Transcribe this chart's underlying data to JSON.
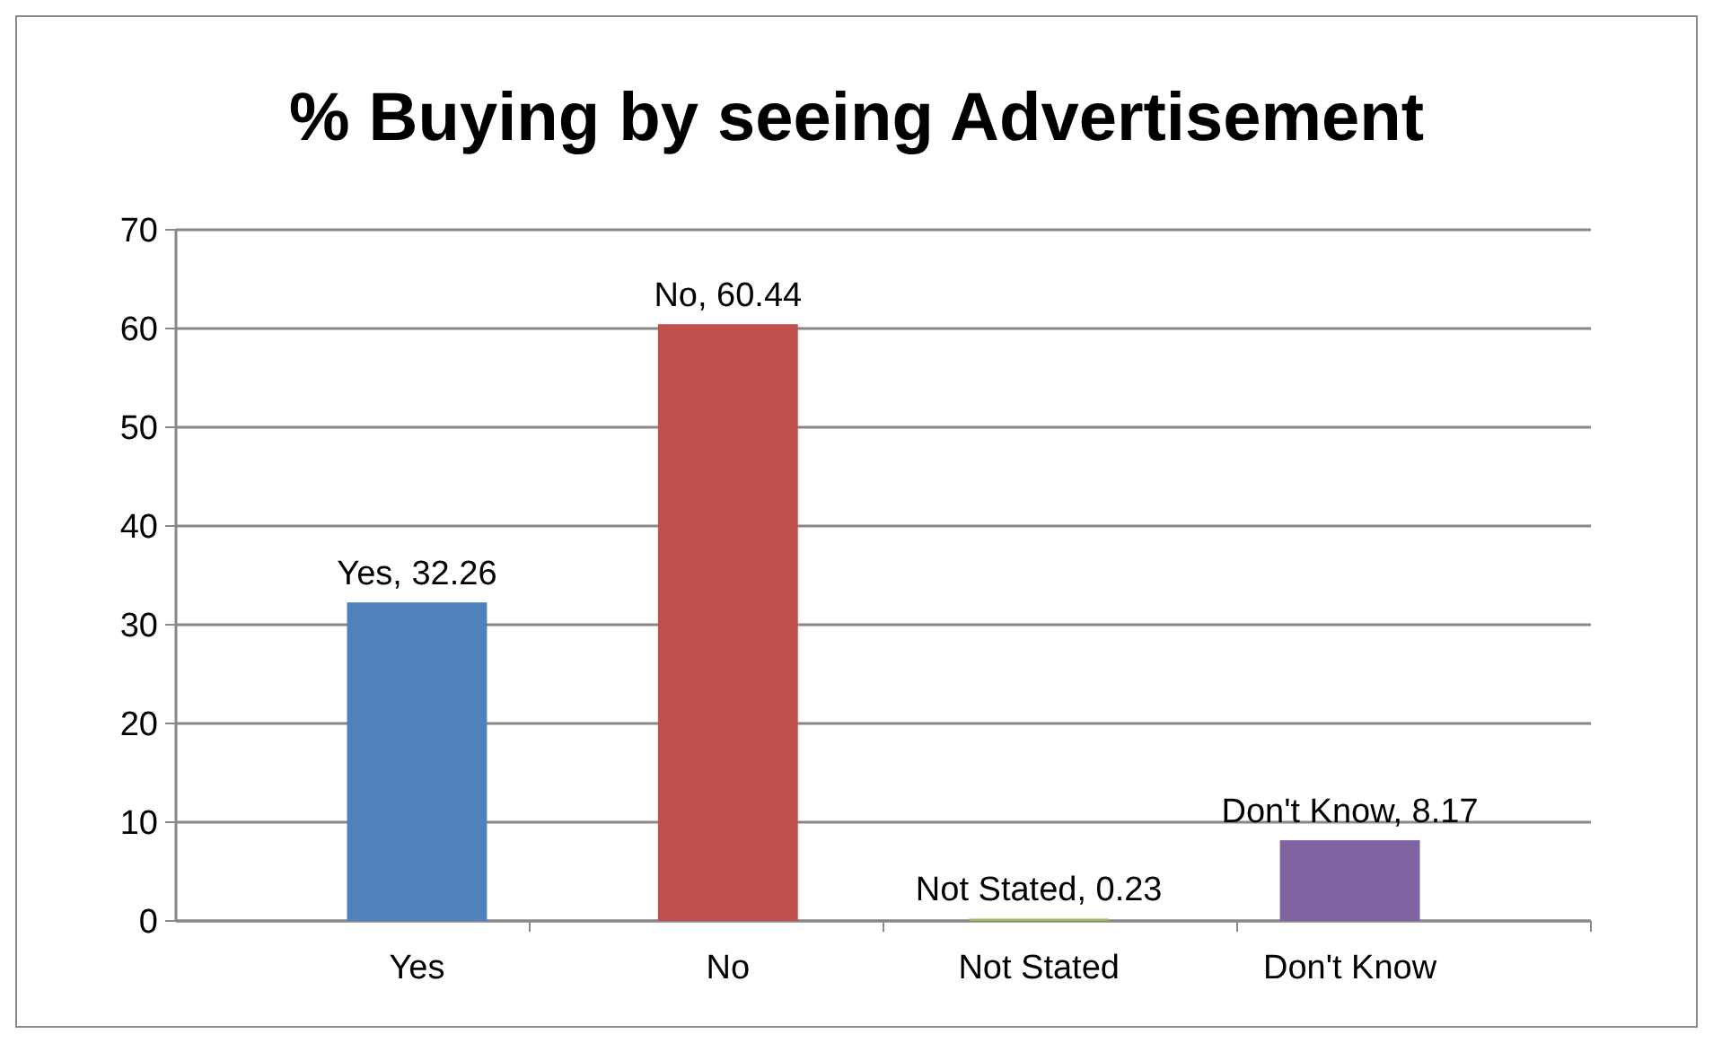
{
  "chart_data": {
    "type": "bar",
    "title": "% Buying by seeing Advertisement",
    "categories": [
      "Yes",
      "No",
      "Not Stated",
      "Don't Know"
    ],
    "values": [
      32.26,
      60.44,
      0.23,
      8.17
    ],
    "colors": [
      "#4f81bd",
      "#c0504d",
      "#9bbb59",
      "#8064a2"
    ],
    "value_labels": [
      "Yes, 32.26",
      "No, 60.44",
      "Not Stated, 0.23",
      "Don't Know, 8.17"
    ],
    "ylim": [
      0,
      70
    ],
    "yticks": [
      0,
      10,
      20,
      30,
      40,
      50,
      60,
      70
    ],
    "grid": "y"
  }
}
